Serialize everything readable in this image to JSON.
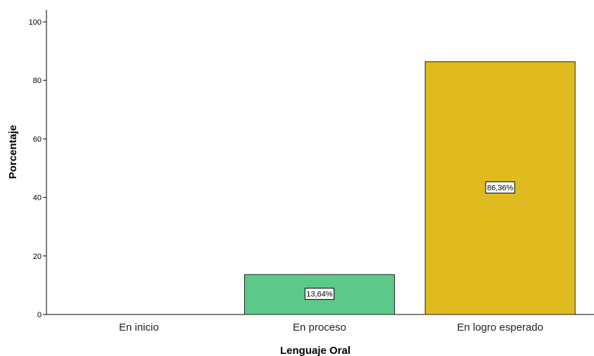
{
  "chart_data": {
    "type": "bar",
    "xlabel": "Lenguaje Oral",
    "ylabel": "Porcentaje",
    "ylim": [
      0,
      100
    ],
    "yticks": [
      0,
      20,
      40,
      60,
      80,
      100
    ],
    "grid": false,
    "categories": [
      "En inicio",
      "En proceso",
      "En logro esperado"
    ],
    "values": [
      0,
      13.64,
      86.36
    ],
    "data_labels": [
      "",
      "13,64%",
      "86,36%"
    ],
    "colors": [
      "#ffffff",
      "#5cc98a",
      "#dfbb1f"
    ]
  }
}
